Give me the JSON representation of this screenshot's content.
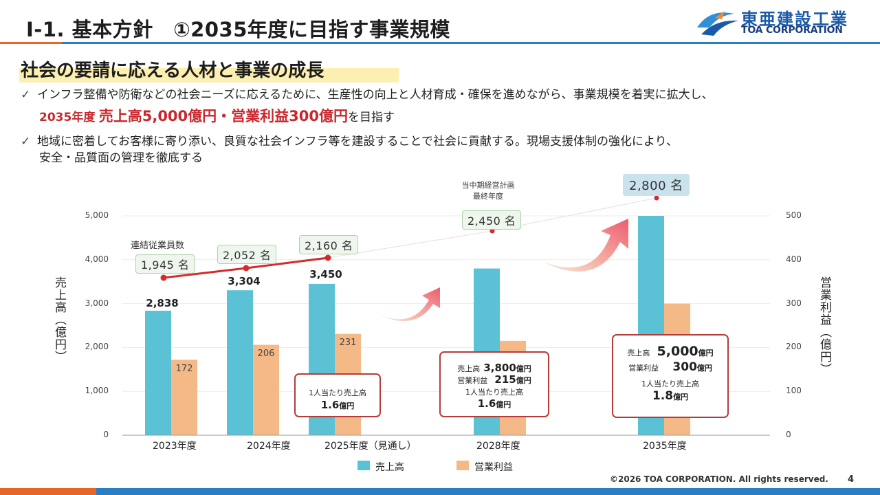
{
  "header": {
    "title": "Ⅰ-1. 基本方針　①2035年度に目指す事業規模",
    "logo_jp": "東亜建設工業",
    "logo_en": "TOA CORPORATION"
  },
  "subtitle": "社会の要請に応える人材と事業の成長",
  "bullets": [
    {
      "mark": "✓",
      "line1": "インフラ整備や防衛などの社会ニーズに応えるために、生産性の向上と人材育成・確保を進めながら、事業規模を着実に拡大し、",
      "year": "2035年度",
      "target": "売上高5,000億円・営業利益300億円",
      "suffix": "を目指す"
    },
    {
      "mark": "✓",
      "line1": "地域に密着してお客様に寄り添い、良質な社会インフラ等を建設することで社会に貢献する。現場支援体制の強化により、",
      "line2": "安全・品質面の管理を徹底する"
    }
  ],
  "chart_data": {
    "type": "bar",
    "categories": [
      "2023年度",
      "2024年度",
      "2025年度（見通し）",
      "2028年度",
      "2035年度"
    ],
    "series": [
      {
        "name": "売上高",
        "axis": "left",
        "color": "#5bc2d6",
        "values": [
          2838,
          3304,
          3450,
          3800,
          5000
        ],
        "labels": [
          "2,838",
          "3,304",
          "3,450",
          "",
          ""
        ]
      },
      {
        "name": "営業利益",
        "axis": "right",
        "color": "#f5b887",
        "values": [
          172,
          206,
          231,
          215,
          300
        ],
        "labels": [
          "172",
          "206",
          "231",
          "",
          ""
        ]
      }
    ],
    "employees": {
      "name": "連結従業員数",
      "values": [
        1945,
        2052,
        2160,
        2450,
        2800
      ],
      "labels": [
        "1,945 名",
        "2,052 名",
        "2,160 名",
        "2,450 名",
        "2,800 名"
      ],
      "line_color": "#d32a2a"
    },
    "yleft": {
      "title": "売上高（億円）",
      "lim": [
        0,
        5000
      ],
      "ticks": [
        "0",
        "1,000",
        "2,000",
        "3,000",
        "4,000",
        "5,000"
      ]
    },
    "yright": {
      "title": "営業利益（億円）",
      "lim": [
        0,
        500
      ],
      "ticks": [
        "0",
        "100",
        "200",
        "300",
        "400",
        "500"
      ]
    },
    "annotation_plan_final": "当中期経営計画\n最終年度",
    "callouts": {
      "c2025": {
        "label": "1人当たり売上高",
        "value": "1.6",
        "unit": "億円"
      },
      "c2028": {
        "sales_label": "売上高",
        "sales_value": "3,800",
        "sales_unit": "億円",
        "op_label": "営業利益",
        "op_value": "215",
        "op_unit": "億円",
        "per_label": "1人当たり売上高",
        "per_value": "1.6",
        "per_unit": "億円"
      },
      "c2035": {
        "sales_label": "売上高",
        "sales_value": "5,000",
        "sales_unit": "億円",
        "op_label": "営業利益",
        "op_value": "300",
        "op_unit": "億円",
        "per_label": "1人当たり売上高",
        "per_value": "1.8",
        "per_unit": "億円"
      }
    },
    "legend": [
      "売上高",
      "営業利益"
    ]
  },
  "footer": {
    "copyright": "©2026 TOA CORPORATION. All rights reserved.",
    "page": "4"
  },
  "colors": {
    "accent_blue": "#2a7fc4",
    "accent_orange": "#e8652a",
    "target_red": "#c9272c"
  }
}
